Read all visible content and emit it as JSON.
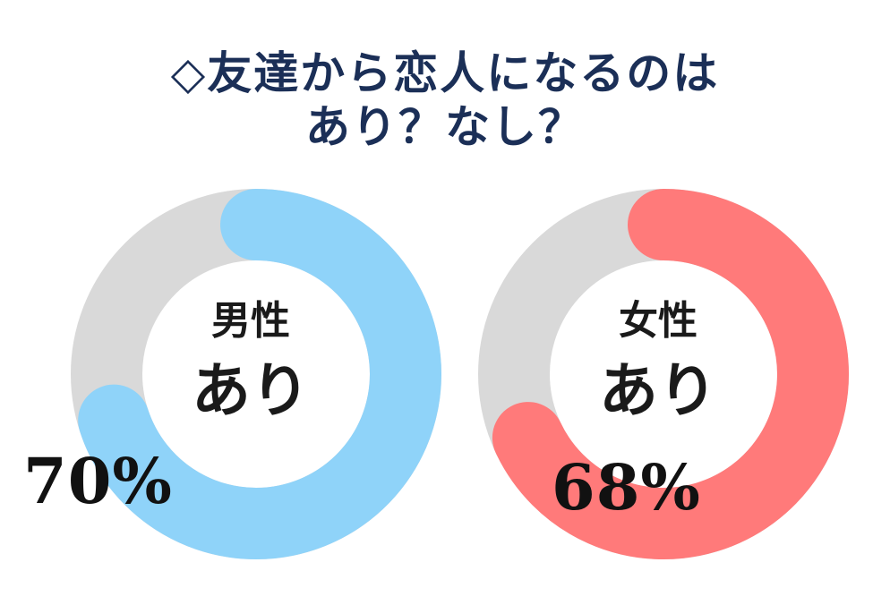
{
  "title": {
    "line1": "◇友達から恋人になるのは",
    "line2": "あり？なし？"
  },
  "chart_data": [
    {
      "type": "pie",
      "variant": "donut",
      "label": "男性",
      "category": "あり",
      "value": 70,
      "value_label": "70%",
      "colors": {
        "value": "#8fd3f9",
        "track": "#d9d9d9"
      }
    },
    {
      "type": "pie",
      "variant": "donut",
      "label": "女性",
      "category": "あり",
      "value": 68,
      "value_label": "68%",
      "colors": {
        "value": "#ff7a7a",
        "track": "#d9d9d9"
      }
    }
  ]
}
